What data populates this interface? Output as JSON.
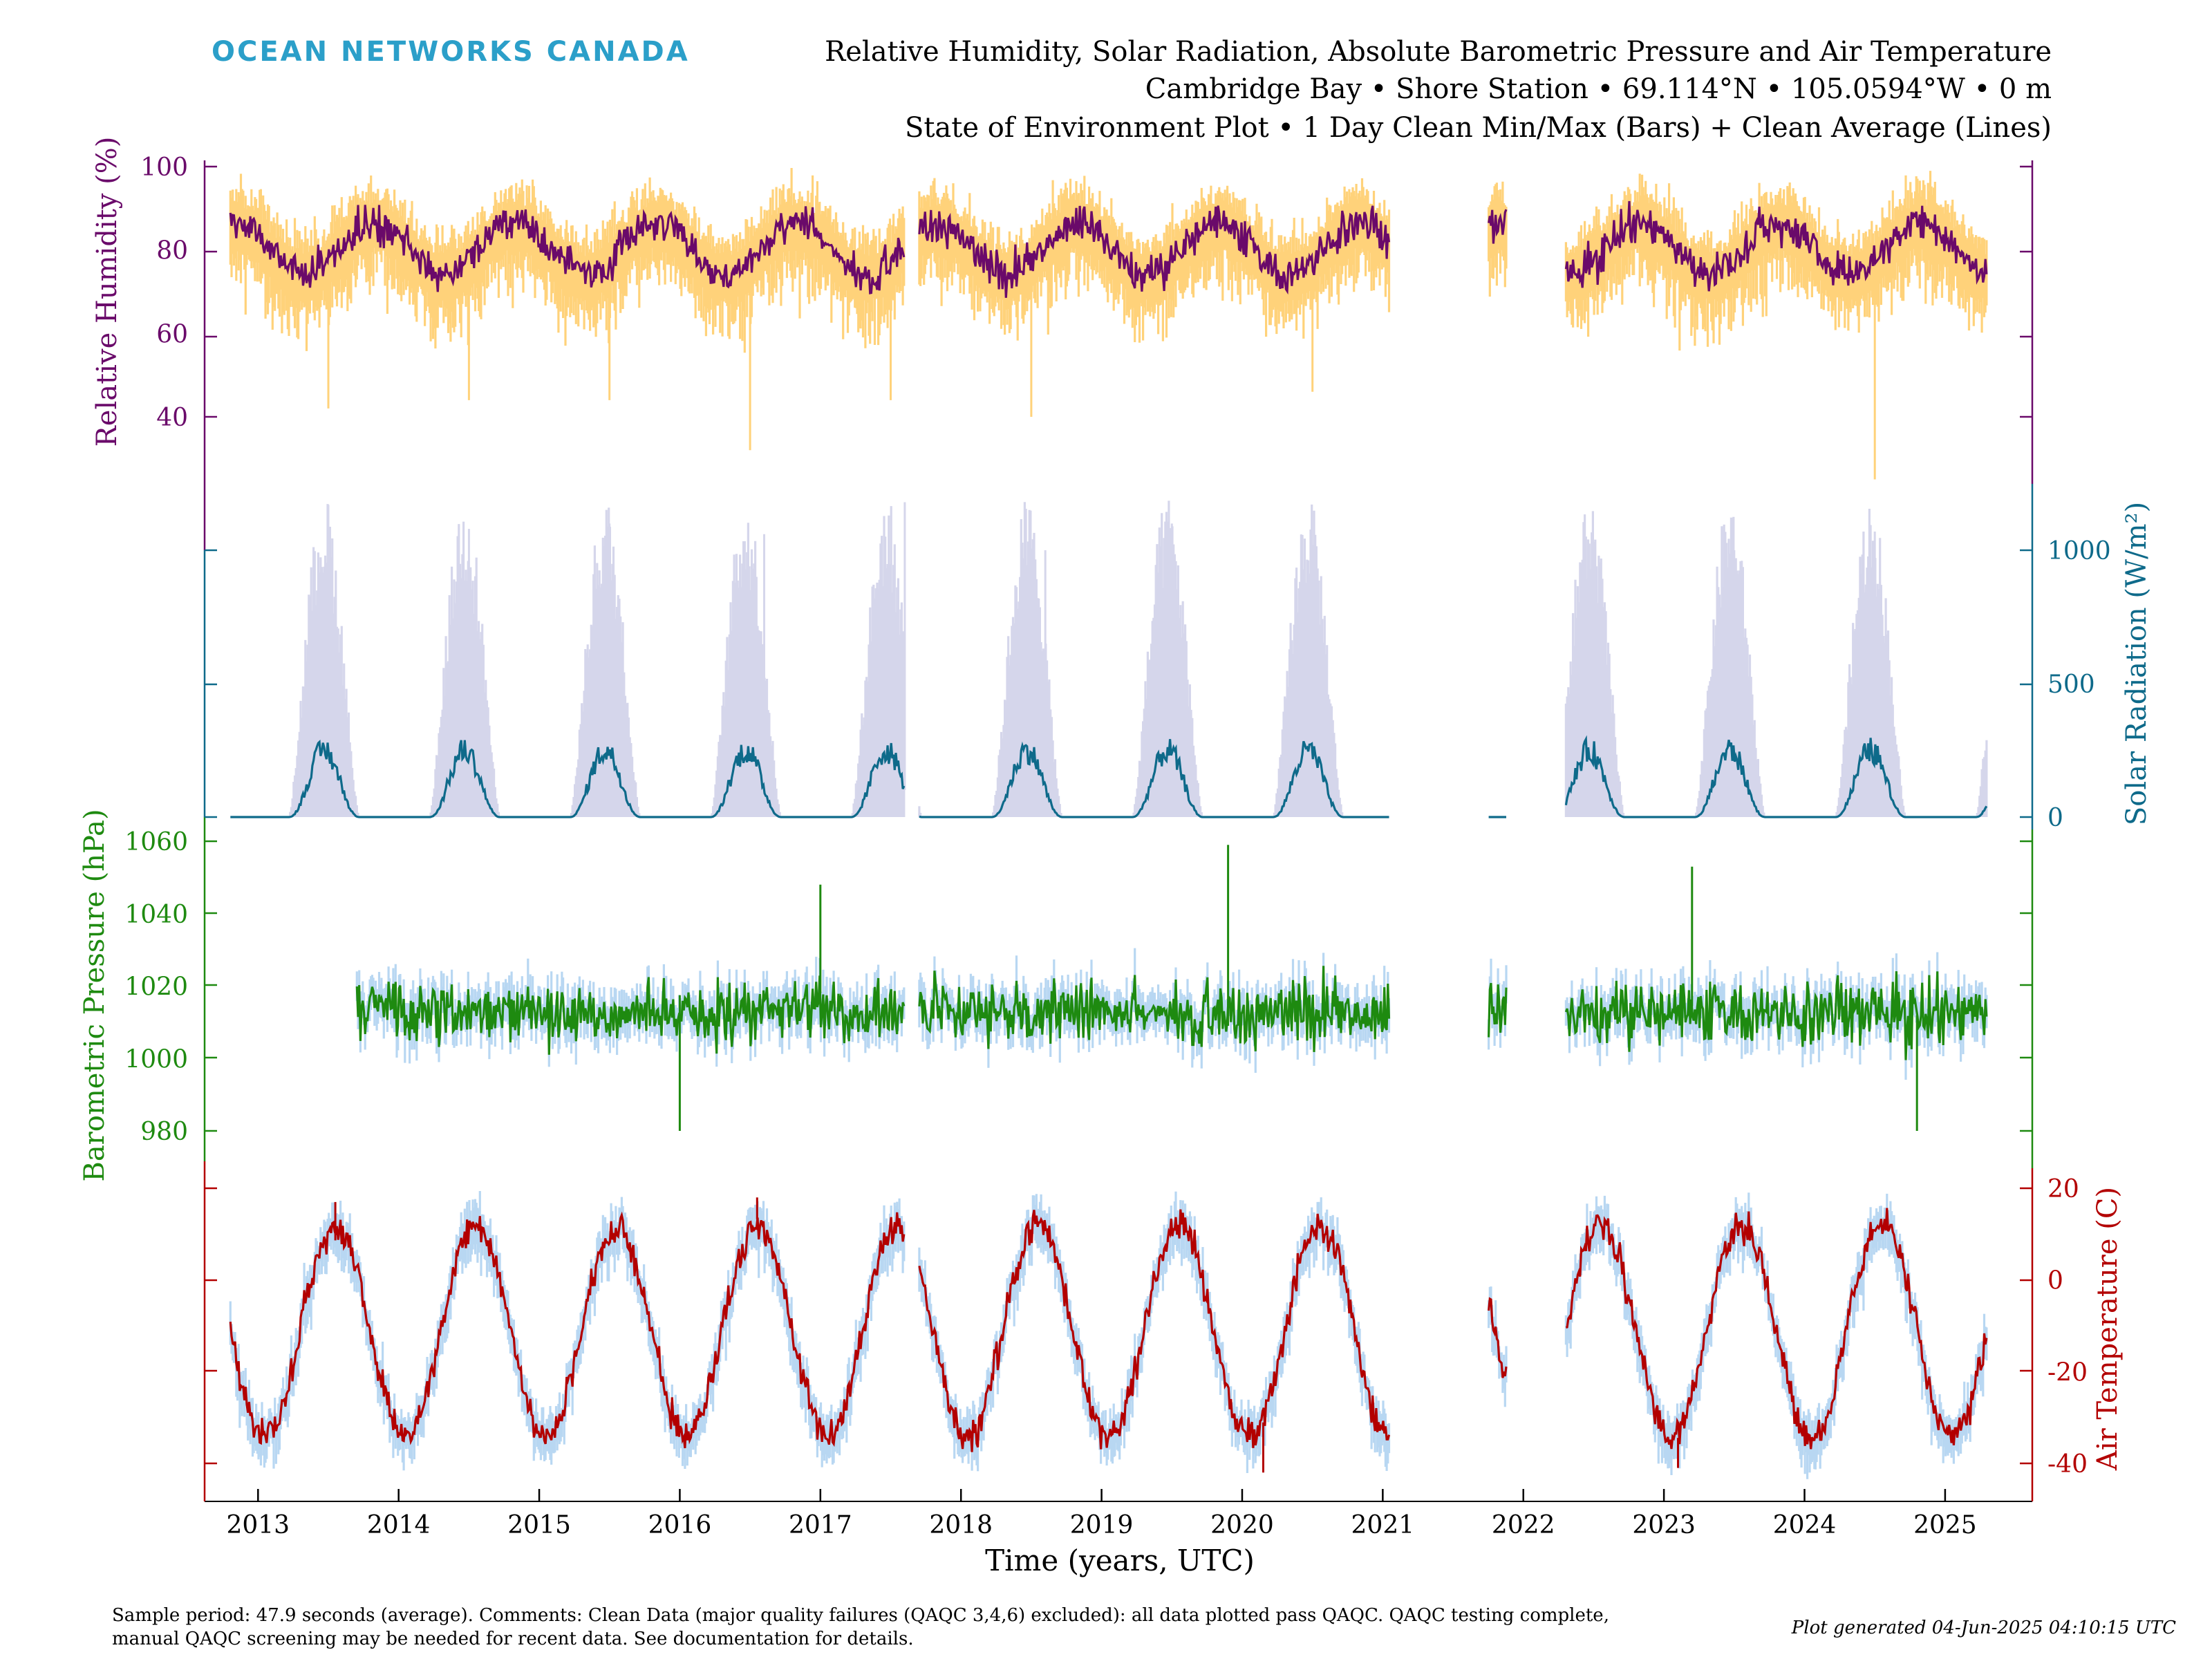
{
  "header": {
    "logo": "OCEAN NETWORKS CANADA",
    "title_line1": "Relative Humidity, Solar Radiation, Absolute Barometric Pressure and Air Temperature",
    "title_line2": "Cambridge Bay • Shore Station • 69.114°N • 105.0594°W • 0 m",
    "title_line3": "State of Environment Plot • 1 Day Clean Min/Max (Bars) + Clean Average (Lines)"
  },
  "footer": {
    "comment_line1": "Sample period: 47.9 seconds (average). Comments: Clean Data (major quality failures (QAQC 3,4,6) excluded): all data plotted pass QAQC. QAQC testing complete,",
    "comment_line2": "manual QAQC screening may be needed for recent data. See documentation for details.",
    "generated": "Plot generated 04-Jun-2025 04:10:15 UTC"
  },
  "chart_data": {
    "type": "line",
    "xlabel": "Time (years, UTC)",
    "xlim": [
      2012.62,
      2025.62
    ],
    "x_ticks": [
      2013,
      2014,
      2015,
      2016,
      2017,
      2018,
      2019,
      2020,
      2021,
      2022,
      2023,
      2024,
      2025
    ],
    "x_tick_labels": [
      "2013",
      "2014",
      "2015",
      "2016",
      "2017",
      "2018",
      "2019",
      "2020",
      "2021",
      "2022",
      "2023",
      "2024",
      "2025"
    ],
    "data_segments": [
      [
        2012.8,
        2017.6
      ],
      [
        2017.7,
        2021.05
      ],
      [
        2021.75,
        2021.88
      ],
      [
        2022.3,
        2025.3
      ]
    ],
    "series": [
      {
        "key": "rh",
        "ylabel": "Relative Humidity (%)",
        "axis_side": "left",
        "color": "#6a0a6a",
        "band_color": "#ffd27a",
        "yticks": [
          40,
          60,
          80,
          100
        ],
        "phase": "winter_high",
        "values": {
          "average_low": 73,
          "average_high": 88,
          "min_low": 55,
          "max_high": 99
        },
        "extremes": [
          [
            2013.5,
            42
          ],
          [
            2014.5,
            44
          ],
          [
            2015.5,
            44
          ],
          [
            2016.5,
            32
          ],
          [
            2017.5,
            44
          ],
          [
            2018.5,
            40
          ],
          [
            2020.5,
            46
          ],
          [
            2024.5,
            25
          ]
        ]
      },
      {
        "key": "solar",
        "ylabel": "Solar Radiation (W/m²)",
        "axis_side": "right",
        "color": "#0e6a8a",
        "band_color": "#d5d6eb",
        "yticks": [
          0,
          500,
          1000
        ],
        "phase": "summer_high",
        "values": {
          "average_winter": 0,
          "average_summer_peak": 250,
          "max_summer_peak": 1150
        },
        "extremes": [
          [
            2013.5,
            1170
          ],
          [
            2014.5,
            1080
          ],
          [
            2015.5,
            1100
          ],
          [
            2016.6,
            1060
          ],
          [
            2017.6,
            1180
          ],
          [
            2018.6,
            1000
          ],
          [
            2019.5,
            1100
          ],
          [
            2020.5,
            1020
          ],
          [
            2023.5,
            1000
          ],
          [
            2024.5,
            1070
          ]
        ]
      },
      {
        "key": "pressure",
        "ylabel": "Barometric Pressure (hPa)",
        "axis_side": "left",
        "color": "#1e8a10",
        "band_color": "#b8d7f2",
        "yticks": [
          980,
          1000,
          1020,
          1040,
          1060
        ],
        "phase": "noise",
        "start_year": 2013.7,
        "values": {
          "average_mean": 1013,
          "average_spread": 14
        },
        "extremes": [
          [
            2016.0,
            980
          ],
          [
            2017.0,
            1048
          ],
          [
            2019.9,
            1059
          ],
          [
            2023.2,
            1053
          ],
          [
            2024.8,
            980
          ]
        ]
      },
      {
        "key": "temp",
        "ylabel": "Air Temperature (C)",
        "axis_side": "right",
        "color": "#b30000",
        "band_color": "#b8d7f2",
        "yticks": [
          -40,
          -20,
          0,
          20
        ],
        "phase": "summer_high",
        "values": {
          "average_winter": -34,
          "average_summer_peak": 12
        },
        "extremes": [
          [
            2013.55,
            17
          ],
          [
            2016.55,
            18
          ],
          [
            2020.15,
            -42
          ],
          [
            2023.1,
            -41
          ]
        ]
      }
    ]
  }
}
